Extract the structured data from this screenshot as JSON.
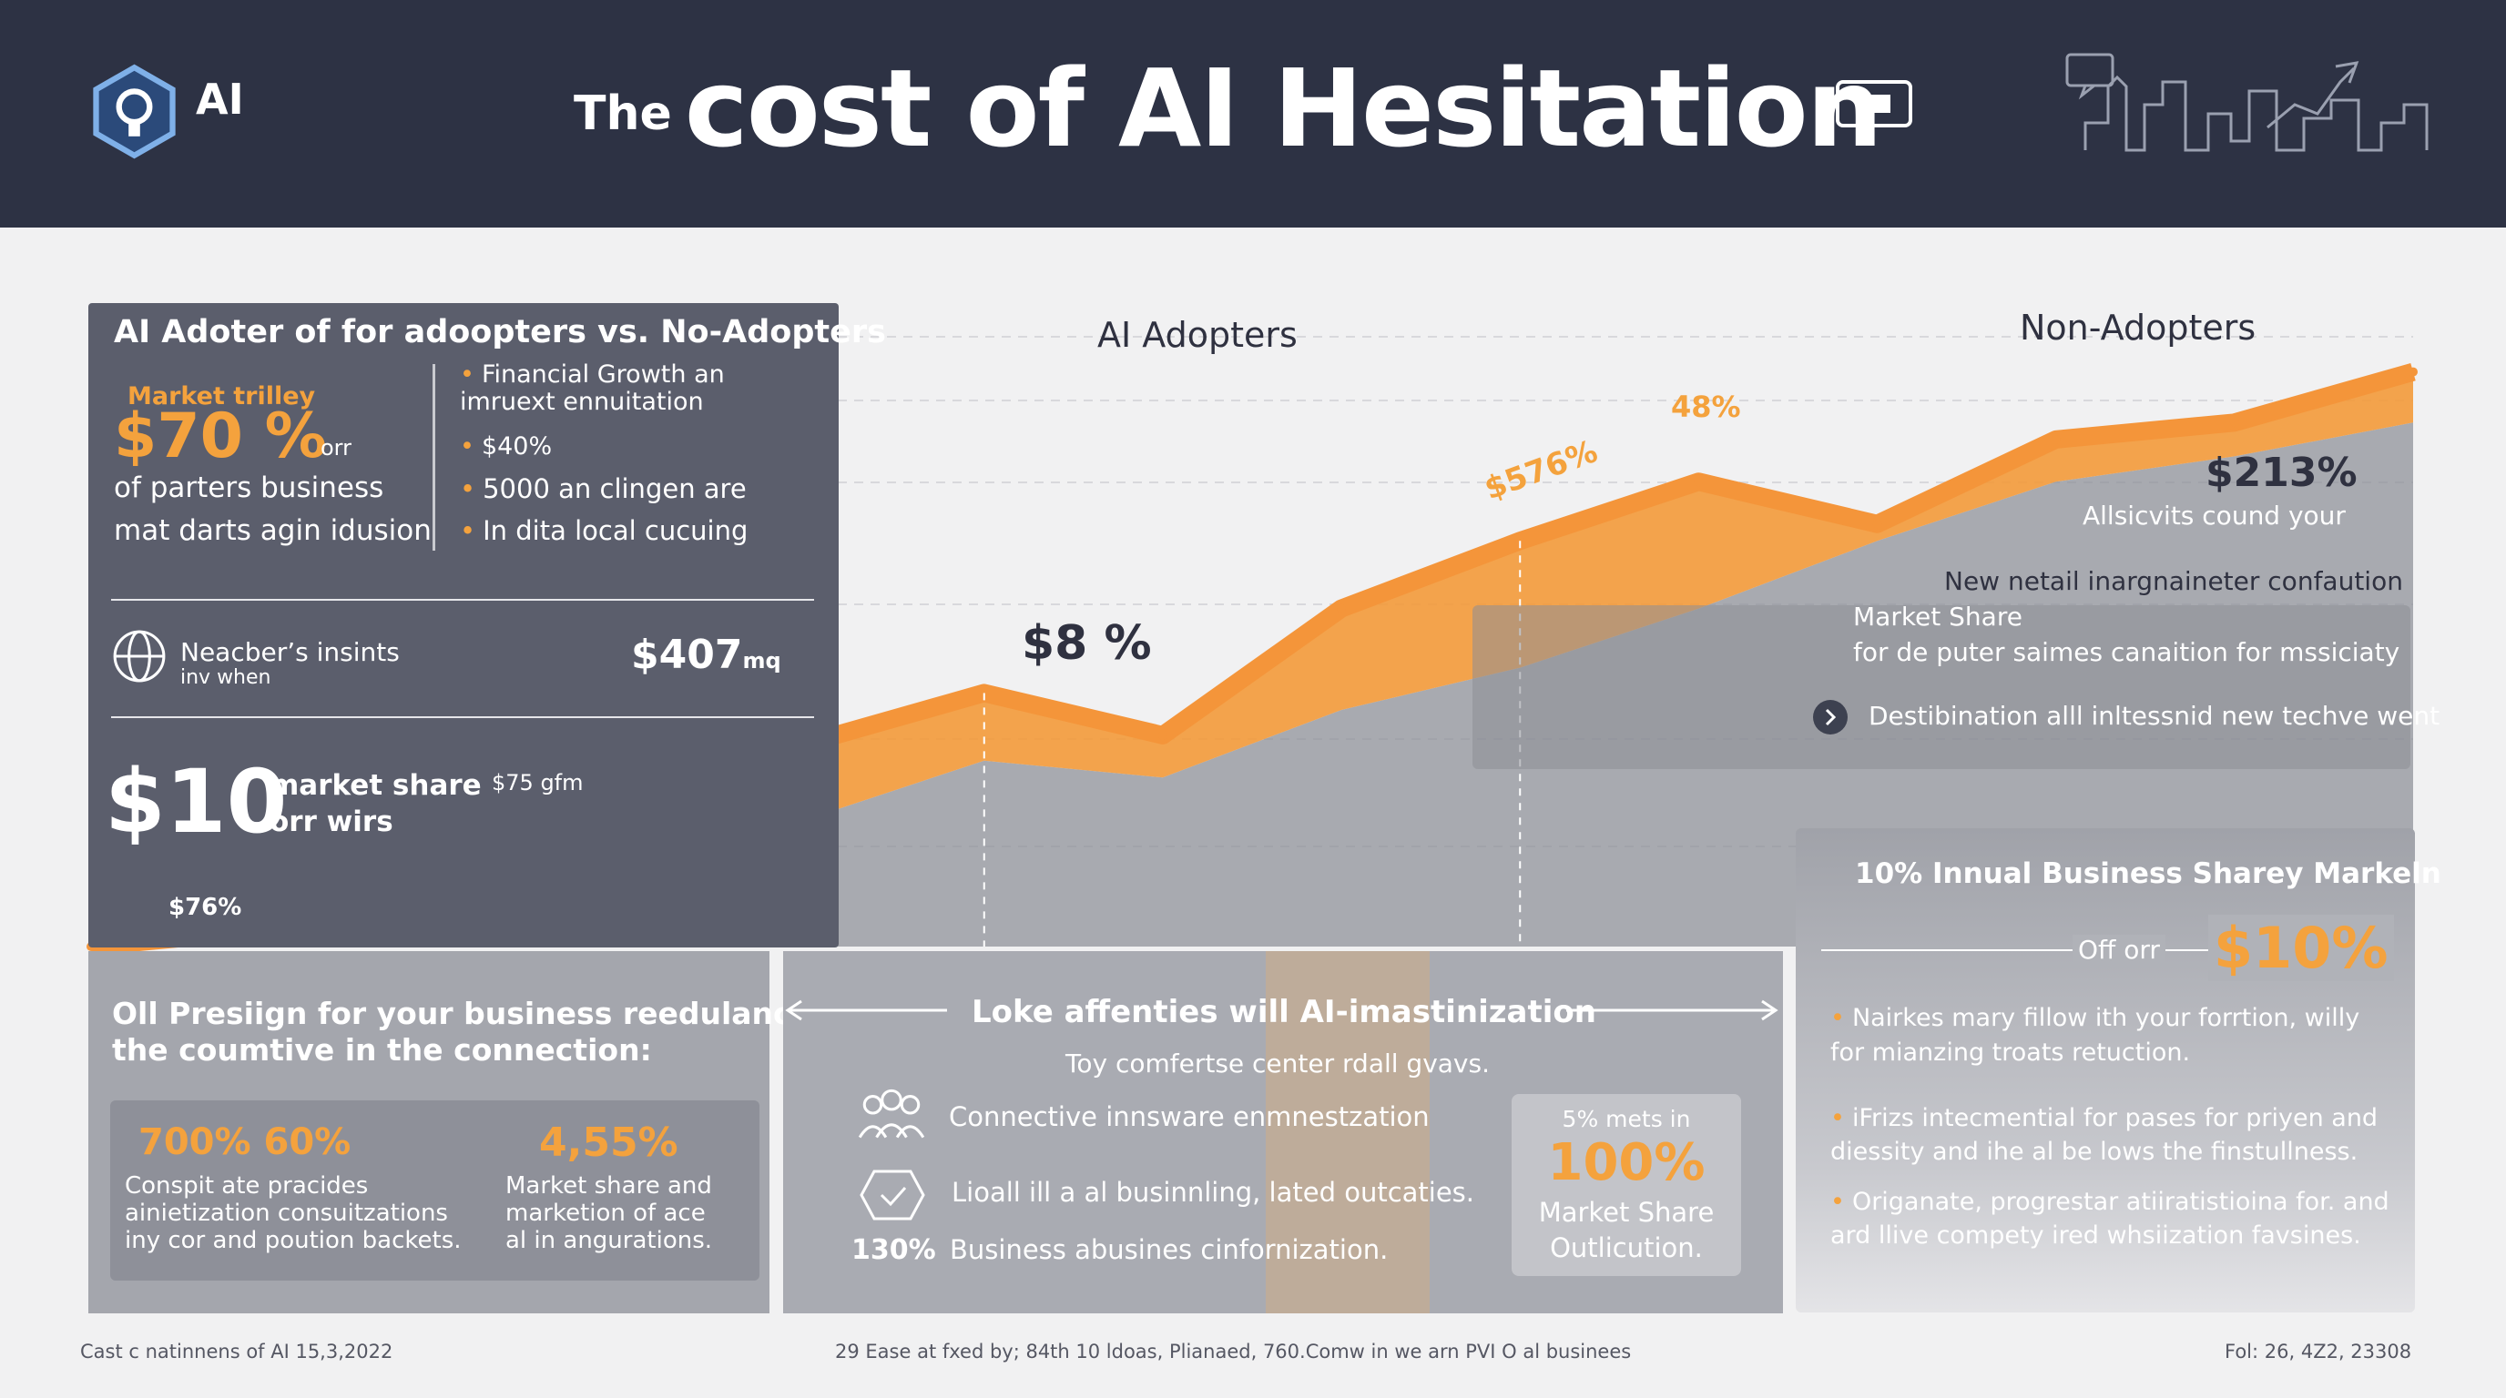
{
  "header": {
    "logo_text": "AI",
    "title_small": "The",
    "title_big": "cost of AI Hesitation"
  },
  "colors": {
    "header_bg": "#2d3244",
    "accent": "#f4a23d",
    "panel": "#5b5e6c"
  },
  "chart_labels": {
    "ai_adopters": "AI Adopters",
    "non_adopters": "Non-Adopters",
    "pct_48": "48%",
    "pct_576": "$576%",
    "pct_8": "$8 %",
    "pct_76": "$76%"
  },
  "chart_data": {
    "type": "area",
    "x": [
      0,
      1,
      2,
      3,
      4,
      5,
      6,
      7,
      8,
      9,
      10,
      11,
      12,
      13
    ],
    "series": [
      {
        "name": "AI Adopters",
        "values": [
          0,
          2,
          12,
          10,
          24,
          30,
          25,
          40,
          48,
          55,
          50,
          60,
          62,
          68
        ]
      },
      {
        "name": "Non-Adopters",
        "values": [
          0,
          1,
          5,
          8,
          15,
          22,
          20,
          28,
          33,
          40,
          48,
          55,
          58,
          62
        ]
      }
    ],
    "annotations": [
      "48%",
      "$576%",
      "$8 %",
      "$76%"
    ]
  },
  "left_panel": {
    "heading": "AI Adoter of for adoopters vs. No-Adopters",
    "market_label": "Market trilley",
    "big_value": "$70 %",
    "big_suffix": "orr",
    "line1": "of parters business",
    "line2": "mat darts agin idusion",
    "bullets": [
      "Financial Growth   an imruext ennuitation",
      "$40%",
      "5000 an clingen are",
      "In dita local cucuing"
    ],
    "row_label": "Neacber’s insints",
    "row_sub": "inv when",
    "row_value": "$407",
    "row_unit": "mq",
    "share_value": "$10",
    "share_label1": "market share",
    "share_label2": "orr wirs",
    "share_small": "$75 gfm"
  },
  "right_top": {
    "value": "$213%",
    "sub": "Allsicvits cound your",
    "line1": "New netail inargnaineter confaution",
    "line2": "Market Share",
    "line3": "for  de puter saimes canaition for mssiciaty",
    "line4": "Destibination alll inltessnid new techve went"
  },
  "bottom_left": {
    "heading1": "Oll Presiign for your business reedulance",
    "heading2": "the coumtive in the connection:",
    "stat1_value": "700% 60%",
    "stat1_text": [
      "Conspit ate pracides",
      "ainietization consuitzations",
      "iny cor and poution backets."
    ],
    "stat2_value": "4,55%",
    "stat2_text": [
      "Market share and",
      "marketion of ace",
      "al in angurations."
    ]
  },
  "bottom_mid": {
    "heading": "Loke affenties will AI-imastinization",
    "sub": "Toy comfertse center rdall gvavs.",
    "item1": "Connective innsware enmnestzation",
    "item2": "Lioall ill a al businnling, lated outcaties.",
    "item3_value": "130%",
    "item3": "Business abusines cinfornization.",
    "box_top": "5% mets in",
    "box_value": "100%",
    "box_l1": "Market Share",
    "box_l2": "Outlicution."
  },
  "bottom_right": {
    "heading": "10% Innual Business Sharey Markeln",
    "off_label": "Off orr",
    "value": "$10%",
    "bullets": [
      [
        "Nairkes mary fillow ith your forrtion, willy",
        "for mianzing troats retuction."
      ],
      [
        "iFrizs intecmential for pases for priyen and",
        "diessity and ihe al be lows the finstullness."
      ],
      [
        "Origanate, progrestar atiiratistioina for. and",
        "ard llive compety ired whsiization favsines."
      ]
    ]
  },
  "footer": {
    "left": "Cast c natinnens of AI 15,3,2022",
    "mid": "29 Ease at fxed by; 84th 10 ldoas, Plianaed, 760.Comw in we arn PVI O al businees",
    "right": "Fol: 26, 4Z2, 23308"
  }
}
